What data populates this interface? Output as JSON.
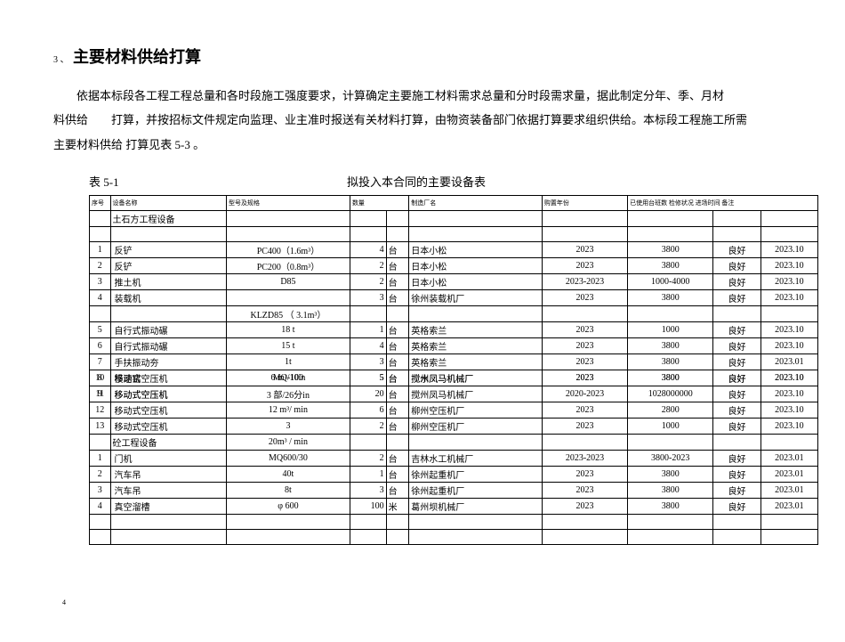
{
  "heading_prefix": "3 、",
  "heading": "主要材料供给打算",
  "para1": "依据本标段各工程工程总量和各时段施工强度要求，计算确定主要施工材料需求总量和分时段需求量，据此制定分年、季、月材",
  "para2": "料供给　　打算，并按招标文件规定向监理、业主准时报送有关材料打算，由物资装备部门依据打算要求组织供给。本标段工程施工所需",
  "para3": "主要材料供给 打算见表 5-3 。",
  "table_label": "表 5-1",
  "table_title": "拟投入本合同的主要设备表",
  "headers": {
    "seq": "序号",
    "name": "设备名称",
    "spec": "型号及规格",
    "qty": "数量",
    "mfr": "制造厂名",
    "year": "购置年份",
    "hours_cond": "已使用台班数 检修状况 进场时间 备注"
  },
  "group1_name": "土石方工程设备",
  "group2_name": "砼工程设备",
  "rows1": [
    {
      "seq": "1",
      "name": "反铲",
      "spec": "PC400（1.6m³）",
      "qty": "4",
      "unit": "台",
      "mfr": "日本小松",
      "year": "2023",
      "hours": "3800",
      "cond": "良好",
      "date": "2023.10"
    },
    {
      "seq": "2",
      "name": "反铲",
      "spec": "PC200（0.8m³）",
      "qty": "2",
      "unit": "台",
      "mfr": "日本小松",
      "year": "2023",
      "hours": "3800",
      "cond": "良好",
      "date": "2023.10"
    },
    {
      "seq": "3",
      "name": "推土机",
      "spec": "D85",
      "qty": "2",
      "unit": "台",
      "mfr": "日本小松",
      "year": "2023-2023",
      "hours": "1000-4000",
      "cond": "良好",
      "date": "2023.10"
    },
    {
      "seq": "4",
      "name": "装载机",
      "spec": "",
      "qty": "3",
      "unit": "台",
      "mfr": "徐州装载机厂",
      "year": "2023",
      "hours": "3800",
      "cond": "良好",
      "date": "2023.10"
    }
  ],
  "spec_between": "KLZD85 （ 3.1m³）",
  "rows1b": [
    {
      "seq": "5",
      "name": "自行式振动碾",
      "spec": "18 t",
      "qty": "1",
      "unit": "台",
      "mfr": "英格索兰",
      "year": "2023",
      "hours": "1000",
      "cond": "良好",
      "date": "2023.10"
    },
    {
      "seq": "6",
      "name": "自行式振动碾",
      "spec": "15 t",
      "qty": "4",
      "unit": "台",
      "mfr": "英格索兰",
      "year": "2023",
      "hours": "3800",
      "cond": "良好",
      "date": "2023.10"
    },
    {
      "seq": "7",
      "name": "手扶振动夯",
      "spec": "1t",
      "qty": "3",
      "unit": "台",
      "mfr": "英格索兰",
      "year": "2023",
      "hours": "3800",
      "cond": "良好",
      "date": "2023.01"
    }
  ],
  "rows_overlap1": {
    "a": {
      "seq": "8",
      "name": "模速窑",
      "spec": "MQ-100",
      "qty": "5",
      "unit": "台",
      "mfr": "搅水凤马机械厂",
      "year": "2023",
      "hours": "3800",
      "cond": "良好",
      "date": "2023.10"
    },
    "b": {
      "seq": "10",
      "name": "移动式空压机",
      "spec": "6 m³/10in",
      "qty": "5",
      "unit": "台",
      "mfr": "搅州凤马机械厂",
      "year": "2023",
      "hours": "3800",
      "cond": "良好",
      "date": "2023.10"
    }
  },
  "rows_overlap2": {
    "a": {
      "seq": "9",
      "name": "移动式空压机",
      "spec": "3 部/26分in",
      "qty": "20",
      "unit": "台",
      "mfr": "搅州凤马机械厂",
      "year": "2020-2023",
      "hours": "1028000000",
      "cond": "良好",
      "date": "2023.10"
    },
    "b": {
      "seq": "11",
      "name": "移动式空压机",
      "spec": "",
      "qty": "",
      "unit": "",
      "mfr": "",
      "year": "",
      "hours": "",
      "cond": "",
      "date": ""
    }
  },
  "rows1c": [
    {
      "seq": "12",
      "name": "移动式空压机",
      "spec": "12 m³/ min",
      "qty": "6",
      "unit": "台",
      "mfr": "柳州空压机厂",
      "year": "2023",
      "hours": "2800",
      "cond": "良好",
      "date": "2023.10"
    },
    {
      "seq": "13",
      "name": "移动式空压机",
      "spec": "3",
      "qty": "2",
      "unit": "台",
      "mfr": "柳州空压机厂",
      "year": "2023",
      "hours": "1000",
      "cond": "良好",
      "date": "2023.10"
    }
  ],
  "spec_tail": "20m³ / min",
  "rows2": [
    {
      "seq": "1",
      "name": "门机",
      "spec": "MQ600/30",
      "qty": "2",
      "unit": "台",
      "mfr": "吉林水工机械厂",
      "year": "2023-2023",
      "hours": "3800-2023",
      "cond": "良好",
      "date": "2023.01"
    },
    {
      "seq": "2",
      "name": "汽车吊",
      "spec": "40t",
      "qty": "1",
      "unit": "台",
      "mfr": "徐州起重机厂",
      "year": "2023",
      "hours": "3800",
      "cond": "良好",
      "date": "2023.01"
    },
    {
      "seq": "3",
      "name": "汽车吊",
      "spec": "8t",
      "qty": "3",
      "unit": "台",
      "mfr": "徐州起重机厂",
      "year": "2023",
      "hours": "3800",
      "cond": "良好",
      "date": "2023.01"
    },
    {
      "seq": "4",
      "name": "真空溜槽",
      "spec": "φ 600",
      "qty": "100",
      "unit": "米",
      "mfr": "葛州坝机械厂",
      "year": "2023",
      "hours": "3800",
      "cond": "良好",
      "date": "2023.01"
    }
  ],
  "page_number": "4"
}
